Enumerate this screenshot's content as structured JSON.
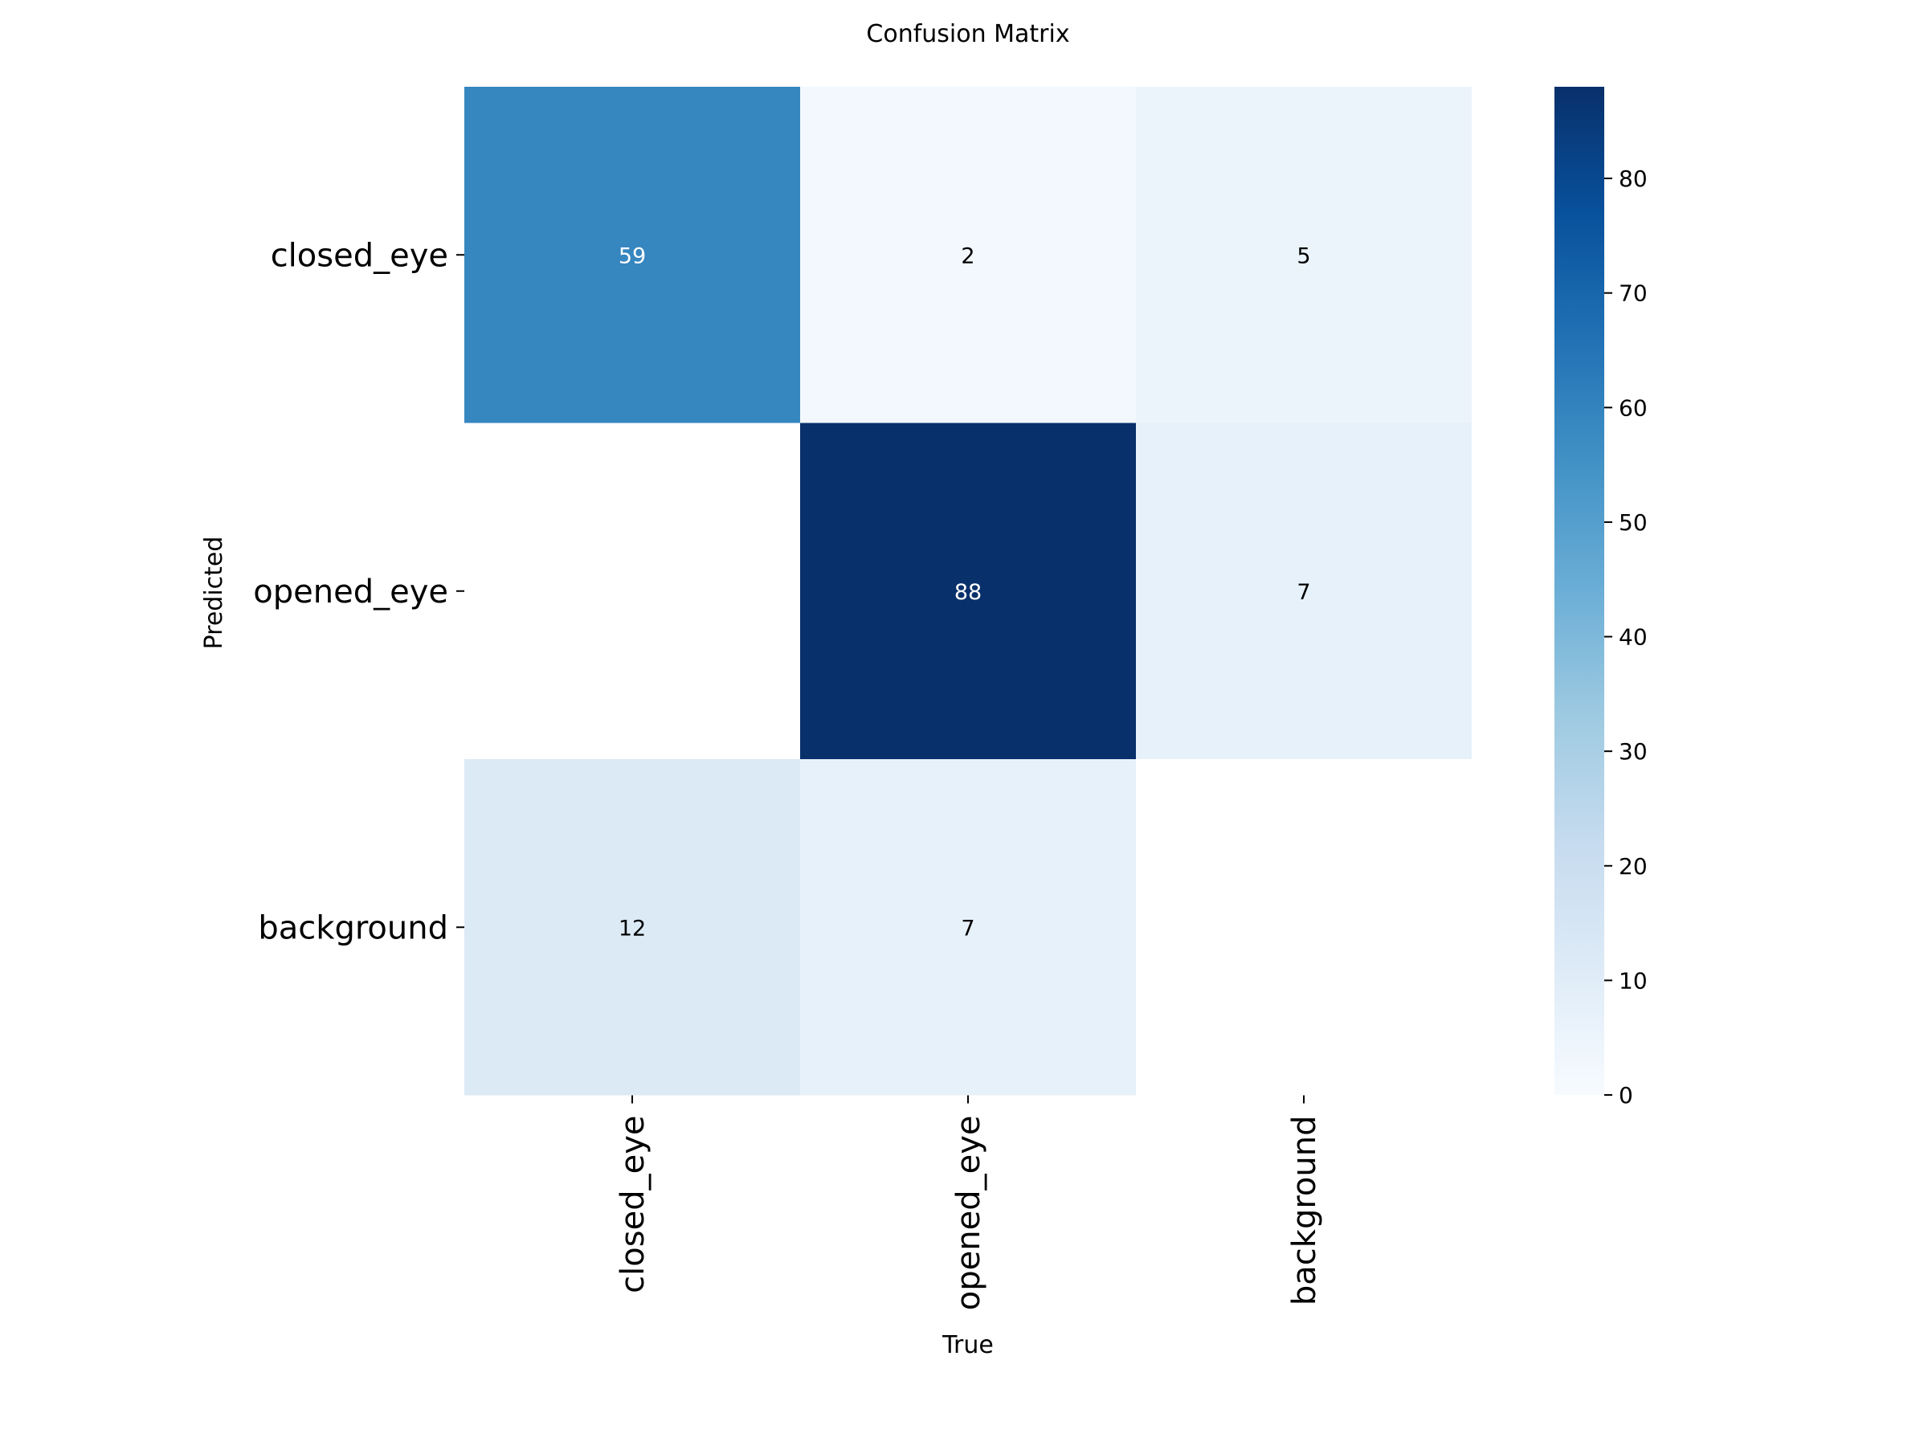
{
  "chart_data": {
    "type": "heatmap",
    "title": "Confusion Matrix",
    "xlabel": "True",
    "ylabel": "Predicted",
    "x_categories": [
      "closed_eye",
      "opened_eye",
      "background"
    ],
    "y_categories": [
      "closed_eye",
      "opened_eye",
      "background"
    ],
    "values": [
      [
        59,
        2,
        5
      ],
      [
        null,
        88,
        7
      ],
      [
        12,
        7,
        null
      ]
    ],
    "colormap": "Blues",
    "colorbar": {
      "range": [
        0,
        88
      ],
      "ticks": [
        0,
        10,
        20,
        30,
        40,
        50,
        60,
        70,
        80
      ]
    },
    "grid": false
  }
}
